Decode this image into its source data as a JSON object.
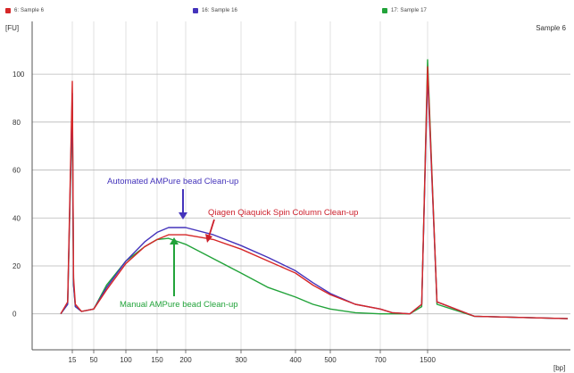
{
  "legend": [
    {
      "label": "6: Sample 6",
      "color": "#d62728"
    },
    {
      "label": "16: Sample 16",
      "color": "#4433bb"
    },
    {
      "label": "17: Sample 17",
      "color": "#22a33a"
    }
  ],
  "chart_data": {
    "type": "line",
    "title": "Sample 6",
    "ylabel": "[FU]",
    "xlabel": "[bp]",
    "ylim": [
      -15,
      122
    ],
    "y_ticks": [
      0,
      20,
      40,
      60,
      80,
      100
    ],
    "y_tick_labels": [
      "0",
      "20",
      "40",
      "60",
      "80",
      "100"
    ],
    "x_ticks": [
      15,
      50,
      100,
      150,
      200,
      300,
      400,
      500,
      700,
      1500
    ],
    "x_tick_labels": [
      "15",
      "50",
      "100",
      "150",
      "200",
      "300",
      "400",
      "500",
      "700",
      "1500"
    ],
    "grid": true,
    "legend_position": "top",
    "series": [
      {
        "color": "#d62728",
        "x": [
          10,
          13,
          15,
          17,
          20,
          30,
          50,
          70,
          100,
          130,
          150,
          170,
          200,
          250,
          300,
          350,
          400,
          450,
          500,
          600,
          700,
          900,
          1200,
          1400,
          1500,
          1600,
          2000,
          3000
        ],
        "values": [
          0,
          5,
          97,
          15,
          4,
          1,
          2,
          10,
          21,
          28,
          31,
          33,
          33,
          31,
          27,
          22,
          17,
          12,
          8,
          4,
          2,
          0.5,
          0,
          4,
          103,
          5,
          -1,
          -2
        ]
      },
      {
        "color": "#4433bb",
        "x": [
          10,
          13,
          15,
          17,
          20,
          30,
          50,
          70,
          100,
          130,
          150,
          170,
          200,
          250,
          300,
          350,
          400,
          450,
          500,
          600,
          700,
          900,
          1200,
          1400,
          1500,
          1600,
          2000,
          3000
        ],
        "values": [
          0,
          4,
          92,
          12,
          3,
          1,
          2,
          11,
          22,
          30,
          34,
          36,
          36,
          33,
          28.5,
          23.5,
          18,
          13,
          8.5,
          4,
          2,
          0.5,
          0,
          4,
          100,
          5,
          -1,
          -2
        ]
      },
      {
        "color": "#22a33a",
        "x": [
          10,
          13,
          15,
          17,
          20,
          30,
          50,
          70,
          100,
          130,
          150,
          170,
          200,
          250,
          300,
          350,
          400,
          450,
          500,
          600,
          700,
          900,
          1200,
          1400,
          1500,
          1600,
          2000,
          3000
        ],
        "values": [
          0,
          4,
          88,
          12,
          3,
          1,
          2,
          12,
          22,
          28,
          31,
          31.5,
          29,
          23,
          17,
          11,
          7,
          4,
          2,
          0.5,
          0,
          0,
          0,
          3,
          106,
          4,
          -1,
          -2
        ]
      }
    ],
    "annotations": [
      {
        "text": "Automated AMPure bead Clean-up",
        "color": "#4433bb"
      },
      {
        "text": "Qiagen Qiaquick Spin Column Clean-up",
        "color": "#cc1f2b"
      },
      {
        "text": "Manual AMPure bead Clean-up",
        "color": "#22a33a"
      }
    ]
  }
}
